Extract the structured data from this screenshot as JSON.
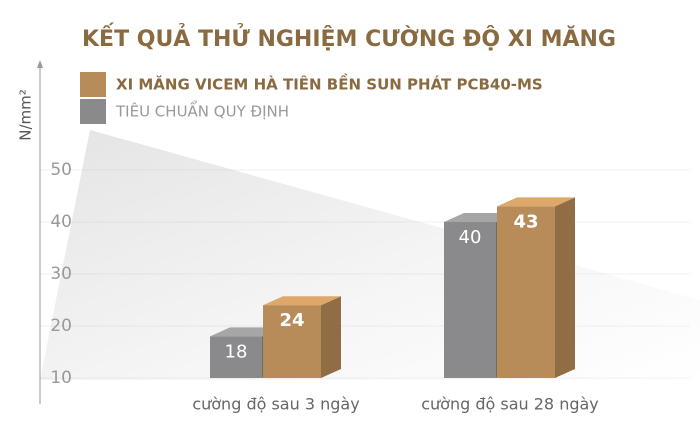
{
  "chart_data": {
    "type": "bar3d",
    "title": "KẾT QUẢ THỬ NGHIỆM CƯỜNG ĐỘ XI MĂNG",
    "y_label": "N/mm²",
    "categories": [
      "cường độ sau 3 ngày",
      "cường độ sau 28 ngày"
    ],
    "series": [
      {
        "name": "TIÊU CHUẨN QUY ĐỊNH",
        "color": "#8a8a8c",
        "values": [
          18,
          40
        ]
      },
      {
        "name": "XI MĂNG VICEM HÀ TIÊN BỀN SUN PHÁT PCB40-MS",
        "color": "#b88c58",
        "values": [
          24,
          43
        ]
      }
    ],
    "ylim": [
      10,
      70
    ],
    "yticks": [
      10,
      20,
      30,
      40,
      50
    ],
    "grid": true
  }
}
